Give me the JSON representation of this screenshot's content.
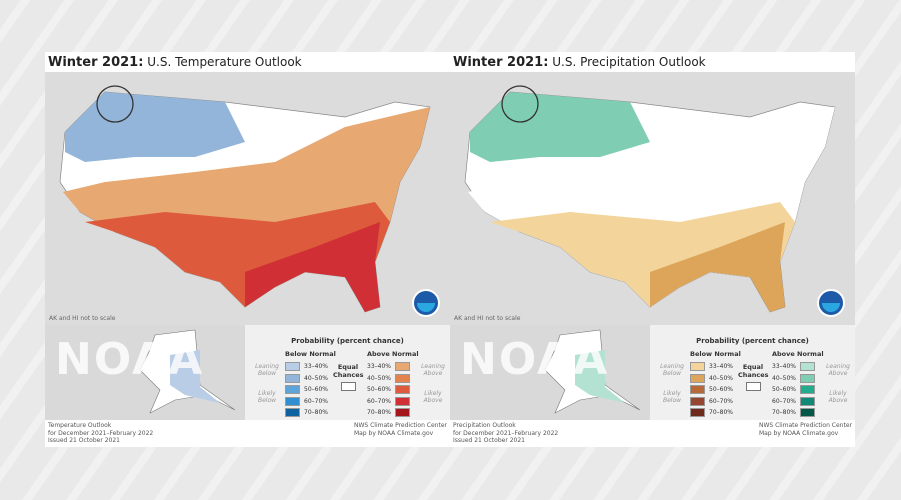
{
  "panels": [
    {
      "title_bold": "Winter 2021:",
      "title_rest": "U.S. Temperature Outlook",
      "scale_note": "AK and HI not to scale",
      "legend": {
        "title": "Probability (percent chance)",
        "below": "Below Normal",
        "above": "Above Normal",
        "equal": "Equal Chances",
        "leaning_below": "Leaning Below",
        "likely_below": "Likely Below",
        "leaning_above": "Leaning Above",
        "likely_above": "Likely Above",
        "ranges": [
          "33–40%",
          "40–50%",
          "50–60%",
          "60–70%",
          "70–80%"
        ],
        "below_colors": [
          "#b9cde6",
          "#93b5da",
          "#5ea4d9",
          "#2f8fd0",
          "#0d62a0"
        ],
        "above_colors": [
          "#e8a871",
          "#e5834f",
          "#dd5a3d",
          "#cf2f35",
          "#a5151c"
        ]
      },
      "footer": [
        "Temperature Outlook",
        "for December 2021–February 2022",
        "Issued 21 October 2021"
      ],
      "credit": [
        "NWS Climate Prediction Center",
        "Map by NOAA Climate.gov"
      ],
      "watermark": "NOAA"
    },
    {
      "title_bold": "Winter 2021:",
      "title_rest": "U.S. Precipitation Outlook",
      "scale_note": "AK and HI not to scale",
      "legend": {
        "title": "Probability (percent chance)",
        "below": "Below Normal",
        "above": "Above Normal",
        "equal": "Equal Chances",
        "leaning_below": "Leaning Below",
        "likely_below": "Likely Below",
        "leaning_above": "Leaning Above",
        "likely_above": "Likely Above",
        "ranges": [
          "33–40%",
          "40–50%",
          "50–60%",
          "60–70%",
          "70–80%"
        ],
        "below_colors": [
          "#f3d49a",
          "#dca55a",
          "#b8693a",
          "#964530",
          "#6e2a1a"
        ],
        "above_colors": [
          "#b3e2d2",
          "#7fceb3",
          "#22ab8c",
          "#108a76",
          "#045848"
        ]
      },
      "footer": [
        "Precipitation Outlook",
        "for December 2021–February 2022",
        "Issued 21 October 2021"
      ],
      "credit": [
        "NWS Climate Prediction Center",
        "Map by NOAA Climate.gov"
      ],
      "watermark": "NOAA"
    }
  ]
}
